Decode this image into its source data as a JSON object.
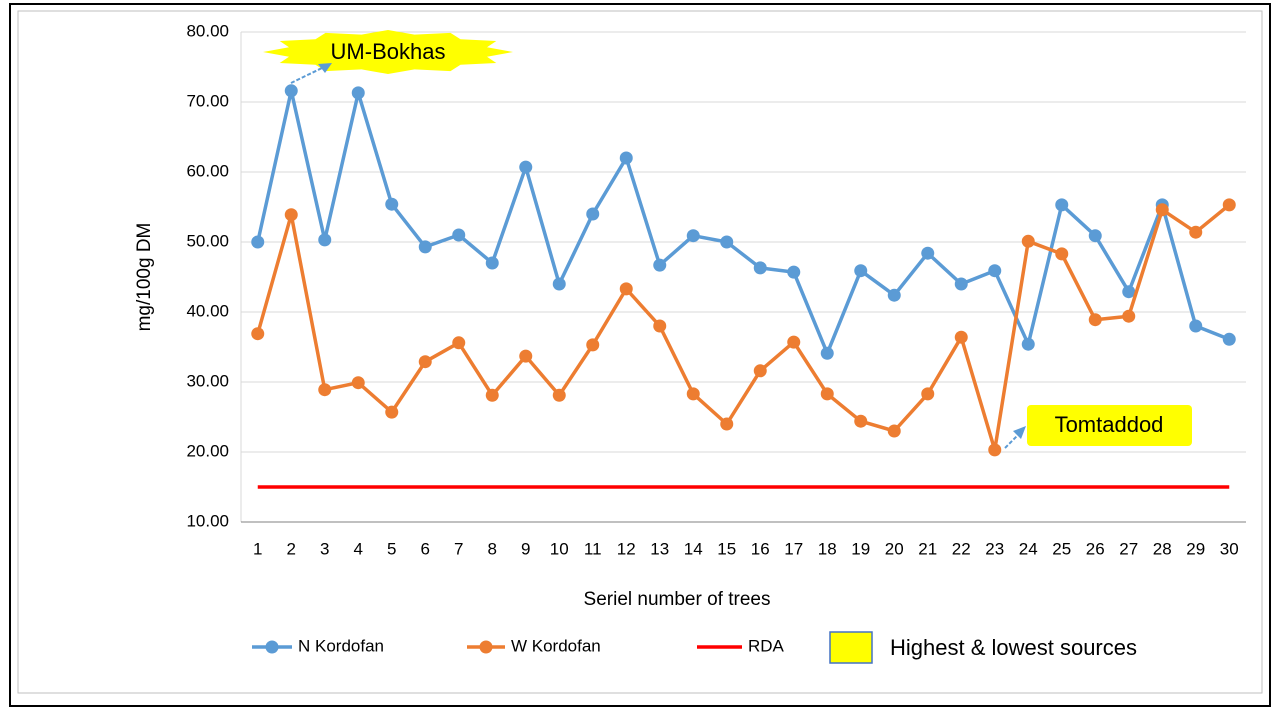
{
  "chart_data": {
    "type": "line",
    "y_axis_title": "mg/100g DM",
    "x_axis_title": "Seriel number of trees",
    "categories": [
      "1",
      "2",
      "3",
      "4",
      "5",
      "6",
      "7",
      "8",
      "9",
      "10",
      "11",
      "12",
      "13",
      "14",
      "15",
      "16",
      "17",
      "18",
      "19",
      "20",
      "21",
      "22",
      "23",
      "24",
      "25",
      "26",
      "27",
      "28",
      "29",
      "30"
    ],
    "series": [
      {
        "name": "N Kordofan",
        "color": "#5b9bd5",
        "marker": true,
        "values": [
          50.0,
          71.6,
          50.3,
          71.3,
          55.4,
          49.3,
          51.0,
          47.0,
          60.7,
          44.0,
          54.0,
          62.0,
          46.7,
          50.9,
          50.0,
          46.3,
          45.7,
          34.1,
          45.9,
          42.4,
          48.4,
          44.0,
          45.9,
          35.4,
          55.3,
          50.9,
          42.9,
          55.3,
          38.0,
          36.1
        ]
      },
      {
        "name": "W Kordofan",
        "color": "#ed7d31",
        "marker": true,
        "values": [
          36.9,
          53.9,
          28.9,
          29.9,
          25.7,
          32.9,
          35.6,
          28.1,
          33.7,
          28.1,
          35.3,
          43.3,
          38.0,
          28.3,
          24.0,
          31.6,
          35.7,
          28.3,
          24.4,
          23.0,
          28.3,
          36.4,
          20.3,
          50.1,
          48.3,
          38.9,
          39.4,
          54.6,
          51.4,
          55.3
        ]
      },
      {
        "name": "RDA",
        "color": "#ff0000",
        "marker": false,
        "values": [
          15,
          15,
          15,
          15,
          15,
          15,
          15,
          15,
          15,
          15,
          15,
          15,
          15,
          15,
          15,
          15,
          15,
          15,
          15,
          15,
          15,
          15,
          15,
          15,
          15,
          15,
          15,
          15,
          15,
          15
        ]
      }
    ],
    "ylim": [
      10,
      80
    ],
    "yticks": [
      {
        "value": 10,
        "label": "10.00"
      },
      {
        "value": 20,
        "label": "20.00"
      },
      {
        "value": 30,
        "label": "30.00"
      },
      {
        "value": 40,
        "label": "40.00"
      },
      {
        "value": 50,
        "label": "50.00"
      },
      {
        "value": 60,
        "label": "60.00"
      },
      {
        "value": 70,
        "label": "70.00"
      },
      {
        "value": 80,
        "label": "80.00"
      }
    ],
    "grid": true,
    "annotations": [
      {
        "text": "UM-Bokhas"
      },
      {
        "text": "Tomtaddod"
      }
    ],
    "highlight_legend": "Highest & lowest sources"
  }
}
